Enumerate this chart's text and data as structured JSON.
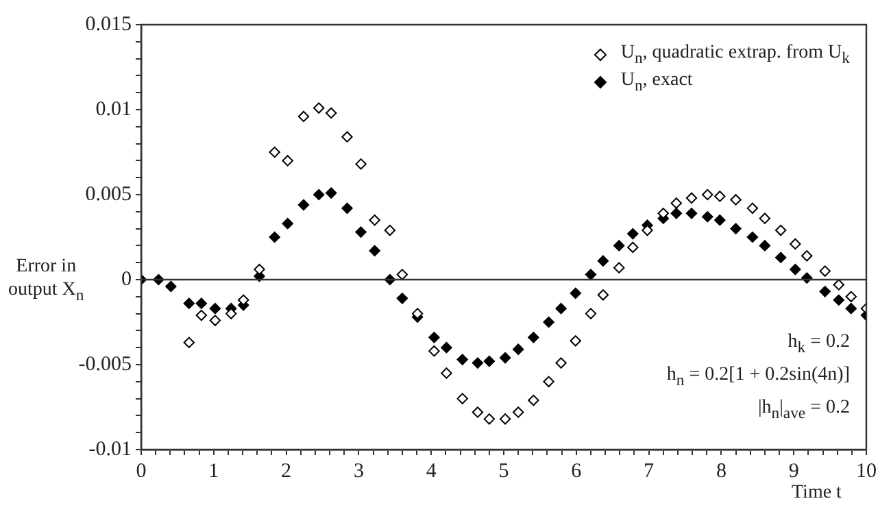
{
  "chart_data": {
    "type": "scatter",
    "xlabel": "Time t",
    "ylabel": "Error in output X$_{n}$",
    "x": [
      0,
      0.24,
      0.41,
      0.66,
      0.83,
      1.02,
      1.24,
      1.41,
      1.63,
      1.84,
      2.02,
      2.24,
      2.45,
      2.62,
      2.84,
      3.03,
      3.22,
      3.43,
      3.6,
      3.81,
      4.04,
      4.21,
      4.43,
      4.64,
      4.8,
      5.02,
      5.2,
      5.41,
      5.62,
      5.79,
      5.99,
      6.2,
      6.37,
      6.59,
      6.78,
      6.98,
      7.2,
      7.38,
      7.59,
      7.81,
      7.98,
      8.2,
      8.43,
      8.6,
      8.82,
      9.02,
      9.18,
      9.43,
      9.62,
      9.79,
      10
    ],
    "series": [
      {
        "name": "U$_{n}$, quadratic extrap. from U$_{k}$",
        "color": "#000000",
        "values": [
          null,
          null,
          null,
          -0.0037,
          -0.0021,
          -0.0024,
          -0.002,
          -0.0012,
          0.0006,
          0.0075,
          0.007,
          0.0096,
          0.0101,
          0.0098,
          0.0084,
          0.0068,
          0.0035,
          0.0029,
          0.0003,
          -0.002,
          -0.0042,
          -0.0055,
          -0.007,
          -0.0078,
          -0.0082,
          -0.0082,
          -0.0078,
          -0.0071,
          -0.006,
          -0.0049,
          -0.0036,
          -0.002,
          -0.0009,
          0.0007,
          0.0019,
          0.0029,
          0.0039,
          0.0045,
          0.0048,
          0.005,
          0.0049,
          0.0047,
          0.0042,
          0.0036,
          0.0029,
          0.0021,
          0.0014,
          0.0005,
          -0.0003,
          -0.001,
          -0.0017
        ]
      },
      {
        "name": "U$_{n}$, exact",
        "color": "#000000",
        "values": [
          0,
          0,
          -0.0004,
          -0.0014,
          -0.0014,
          -0.0017,
          -0.0017,
          -0.0015,
          0.0002,
          0.0025,
          0.0033,
          0.0044,
          0.005,
          0.0051,
          0.0042,
          0.0028,
          0.0017,
          0,
          -0.0011,
          -0.0022,
          -0.0034,
          -0.004,
          -0.0047,
          -0.0049,
          -0.0048,
          -0.0046,
          -0.0041,
          -0.0034,
          -0.0025,
          -0.0017,
          -0.0008,
          0.0003,
          0.0011,
          0.002,
          0.0027,
          0.0032,
          0.0036,
          0.0039,
          0.0039,
          0.0037,
          0.0035,
          0.003,
          0.0025,
          0.002,
          0.0013,
          0.0006,
          0.0001,
          -0.0007,
          -0.0012,
          -0.0017,
          -0.0021
        ]
      }
    ],
    "marker": "diamond",
    "legend": "top right",
    "grid": false,
    "xlim": [
      0,
      10
    ],
    "ylim": [
      -0.01,
      0.015
    ],
    "xticks": [
      0,
      {
        "value": 0.2,
        "label": null
      },
      {
        "value": 0.4,
        "label": null
      },
      {
        "value": 0.6,
        "label": null
      },
      {
        "value": 0.8,
        "label": null
      },
      1,
      {
        "value": 1.2,
        "label": null
      },
      {
        "value": 1.4,
        "label": null
      },
      {
        "value": 1.6,
        "label": null
      },
      {
        "value": 1.8,
        "label": null
      },
      2,
      {
        "value": 2.2,
        "label": null
      },
      {
        "value": 2.4,
        "label": null
      },
      {
        "value": 2.6,
        "label": null
      },
      {
        "value": 2.8,
        "label": null
      },
      3,
      {
        "value": 3.2,
        "label": null
      },
      {
        "value": 3.4,
        "label": null
      },
      {
        "value": 3.6,
        "label": null
      },
      {
        "value": 3.8,
        "label": null
      },
      4,
      {
        "value": 4.2,
        "label": null
      },
      {
        "value": 4.4,
        "label": null
      },
      {
        "value": 4.6,
        "label": null
      },
      {
        "value": 4.8,
        "label": null
      },
      5,
      {
        "value": 5.2,
        "label": null
      },
      {
        "value": 5.4,
        "label": null
      },
      {
        "value": 5.6,
        "label": null
      },
      {
        "value": 5.8,
        "label": null
      },
      6,
      {
        "value": 6.2,
        "label": null
      },
      {
        "value": 6.4,
        "label": null
      },
      {
        "value": 6.6,
        "label": null
      },
      {
        "value": 6.8,
        "label": null
      },
      7,
      {
        "value": 7.2,
        "label": null
      },
      {
        "value": 7.4,
        "label": null
      },
      {
        "value": 7.6,
        "label": null
      },
      {
        "value": 7.8,
        "label": null
      },
      8,
      {
        "value": 8.2,
        "label": null
      },
      {
        "value": 8.4,
        "label": null
      },
      {
        "value": 8.6,
        "label": null
      },
      {
        "value": 8.8,
        "label": null
      },
      9,
      {
        "value": 9.2,
        "label": null
      },
      {
        "value": 9.4,
        "label": null
      },
      {
        "value": 9.6,
        "label": null
      },
      {
        "value": 9.8,
        "label": null
      },
      10
    ],
    "yticks": [
      -0.01,
      {
        "value": -0.009,
        "label": null
      },
      {
        "value": -0.008,
        "label": null
      },
      {
        "value": -0.007,
        "label": null
      },
      {
        "value": -0.006,
        "label": null
      },
      -0.005,
      {
        "value": -0.004,
        "label": null
      },
      {
        "value": -0.003,
        "label": null
      },
      {
        "value": -0.002,
        "label": null
      },
      {
        "value": -0.001,
        "label": null
      },
      0,
      {
        "value": 0.001,
        "label": null
      },
      {
        "value": 0.002,
        "label": null
      },
      {
        "value": 0.003,
        "label": null
      },
      {
        "value": 0.004,
        "label": null
      },
      0.005,
      {
        "value": 0.006,
        "label": null
      },
      {
        "value": 0.007,
        "label": null
      },
      {
        "value": 0.008,
        "label": null
      },
      {
        "value": 0.009,
        "label": null
      },
      0.01,
      {
        "value": 0.011,
        "label": null
      },
      {
        "value": 0.012,
        "label": null
      },
      {
        "value": 0.013,
        "label": null
      },
      {
        "value": 0.014,
        "label": null
      },
      0.015
    ],
    "ref_lines": [
      {
        "axis": "y",
        "value": 0
      }
    ],
    "annotations": [
      "h$_{k}$ = 0.2",
      "h$_{n}$ = 0.2[1 + 0.2sin(4n)]",
      "|h$_{n}$|$_{ave}$ = 0.2"
    ]
  }
}
